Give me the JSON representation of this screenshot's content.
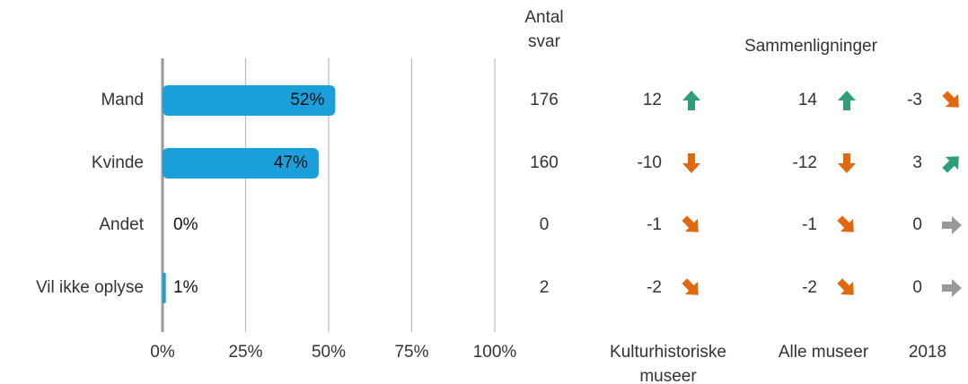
{
  "chart_data": {
    "type": "bar",
    "orientation": "horizontal",
    "categories": [
      "Mand",
      "Kvinde",
      "Andet",
      "Vil ikke oplyse"
    ],
    "values": [
      52,
      47,
      0,
      1
    ],
    "value_labels": [
      "52%",
      "47%",
      "0%",
      "1%"
    ],
    "color": "#1a9fdb",
    "xlim": [
      0,
      100
    ],
    "xticks": [
      {
        "value": 0,
        "label": "0%"
      },
      {
        "value": 25,
        "label": "25%"
      },
      {
        "value": 50,
        "label": "50%"
      },
      {
        "value": 75,
        "label": "75%"
      },
      {
        "value": 100,
        "label": "100%"
      }
    ],
    "grid": true
  },
  "count_column": {
    "title": "Antal svar",
    "values": [
      176,
      160,
      0,
      2
    ]
  },
  "comparisons": {
    "title": "Sammenligninger",
    "columns": [
      {
        "name": "Kulturhistoriske museer",
        "values": [
          12,
          -10,
          -1,
          -2
        ]
      },
      {
        "name": "Alle museer",
        "values": [
          14,
          -12,
          -1,
          -2
        ]
      },
      {
        "name": "2018",
        "values": [
          -3,
          3,
          0,
          0
        ]
      }
    ]
  }
}
